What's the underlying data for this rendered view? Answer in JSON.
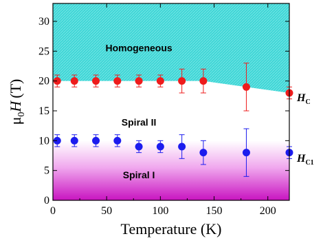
{
  "chart_data": {
    "type": "scatter",
    "xlabel": "Temperature (K)",
    "ylabel_main": "H",
    "ylabel_prefix": "μ",
    "ylabel_sub": "0",
    "ylabel_unit": "(T)",
    "xlim": [
      0,
      220
    ],
    "ylim": [
      0,
      33
    ],
    "x_ticks": [
      0,
      50,
      100,
      150,
      200
    ],
    "y_ticks": [
      0,
      5,
      10,
      15,
      20,
      25,
      30
    ],
    "grid": false,
    "series": [
      {
        "name_main": "H",
        "name_sub": "C",
        "color": "#ee1c1c",
        "x": [
          4,
          20,
          40,
          60,
          80,
          100,
          120,
          140,
          180,
          220
        ],
        "y": [
          20,
          20,
          20,
          20,
          20,
          20,
          20,
          20,
          19,
          18
        ],
        "err": [
          1,
          1,
          1,
          1,
          1,
          1,
          2,
          2,
          4,
          1
        ]
      },
      {
        "name_main": "H",
        "name_sub": "C1",
        "color": "#1c1cee",
        "x": [
          4,
          20,
          40,
          60,
          80,
          100,
          120,
          140,
          180,
          220
        ],
        "y": [
          10,
          10,
          10,
          10,
          9,
          9,
          9,
          8,
          8,
          8
        ],
        "err": [
          1,
          1,
          1,
          1,
          1,
          1,
          2,
          2,
          4,
          1
        ]
      }
    ],
    "regions": [
      {
        "label": "Homogeneous",
        "x": 80,
        "y": 25
      },
      {
        "label": "Spiral II",
        "x": 80,
        "y": 12.5
      },
      {
        "label": "Spiral I",
        "x": 80,
        "y": 3.7
      }
    ],
    "colors": {
      "homogeneous_fill": "#3fd6d6",
      "spiral_i_fill": "#d21fc8"
    }
  }
}
